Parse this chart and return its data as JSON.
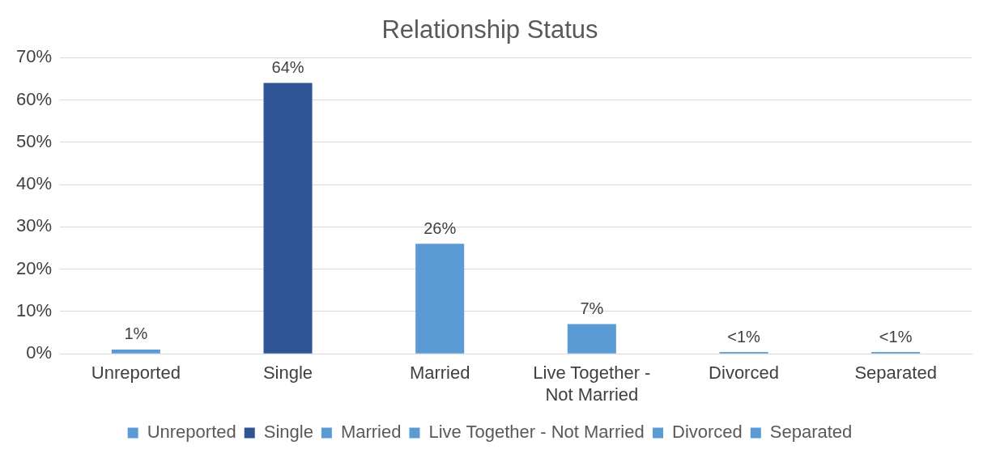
{
  "chart_data": {
    "type": "bar",
    "title": "Relationship Status",
    "categories": [
      "Unreported",
      "Single",
      "Married",
      "Live Together - Not Married",
      "Divorced",
      "Separated"
    ],
    "series": [
      {
        "name": "Unreported",
        "color": "#5b9bd5",
        "values": [
          1,
          null,
          null,
          null,
          null,
          null
        ],
        "value_labels": [
          "1%",
          null,
          null,
          null,
          null,
          null
        ]
      },
      {
        "name": "Single",
        "color": "#2f5597",
        "values": [
          null,
          64,
          null,
          null,
          null,
          null
        ],
        "value_labels": [
          null,
          "64%",
          null,
          null,
          null,
          null
        ]
      },
      {
        "name": "Married",
        "color": "#5b9bd5",
        "values": [
          null,
          null,
          26,
          null,
          null,
          null
        ],
        "value_labels": [
          null,
          null,
          "26%",
          null,
          null,
          null
        ]
      },
      {
        "name": "Live Together - Not Married",
        "color": "#5b9bd5",
        "values": [
          null,
          null,
          null,
          7,
          null,
          null
        ],
        "value_labels": [
          null,
          null,
          null,
          "7%",
          null,
          null
        ]
      },
      {
        "name": "Divorced",
        "color": "#5b9bd5",
        "values": [
          null,
          null,
          null,
          null,
          0.4,
          null
        ],
        "value_labels": [
          null,
          null,
          null,
          null,
          "<1%",
          null
        ]
      },
      {
        "name": "Separated",
        "color": "#5b9bd5",
        "values": [
          null,
          null,
          null,
          null,
          null,
          0.4
        ],
        "value_labels": [
          null,
          null,
          null,
          null,
          null,
          "<1%"
        ]
      }
    ],
    "ylim": [
      0,
      70
    ],
    "yticks": [
      {
        "value": 0,
        "label": "0%"
      },
      {
        "value": 10,
        "label": "10%"
      },
      {
        "value": 20,
        "label": "20%"
      },
      {
        "value": 30,
        "label": "30%"
      },
      {
        "value": 40,
        "label": "40%"
      },
      {
        "value": 50,
        "label": "50%"
      },
      {
        "value": 60,
        "label": "60%"
      },
      {
        "value": 70,
        "label": "70%"
      }
    ],
    "grid": "y",
    "legend": "bottom"
  }
}
